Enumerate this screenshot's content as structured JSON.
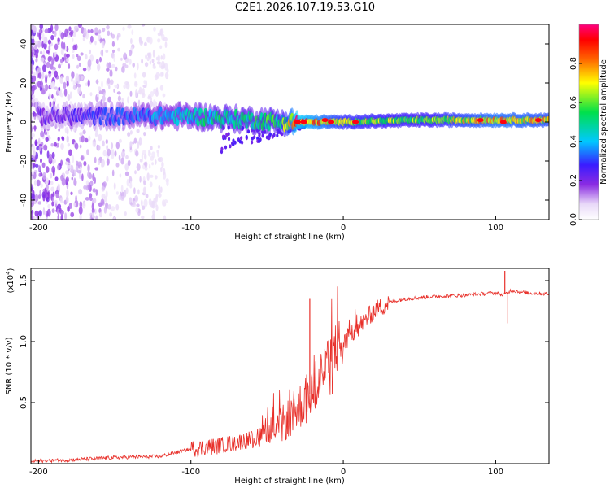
{
  "title": "C2E1.2026.107.19.53.G10",
  "chart_data": [
    {
      "type": "heatmap",
      "title": "C2E1.2026.107.19.53.G10",
      "xlabel": "Height of straight line (km)",
      "ylabel": "Frequency (Hz)",
      "xlim": [
        -205,
        135
      ],
      "ylim": [
        -50,
        50
      ],
      "xticks": [
        -200,
        -100,
        0,
        100
      ],
      "yticks": [
        -40,
        -20,
        0,
        20,
        40
      ],
      "colorbar": {
        "label": "Normalized spectral amplitude",
        "range": [
          0,
          1
        ],
        "ticks": [
          0.0,
          0.2,
          0.4,
          0.6,
          0.8
        ],
        "tick_labels": [
          "0.0",
          "0.2",
          "0.4",
          "0.6",
          "0.8"
        ]
      },
      "ridge": {
        "x": [
          -200,
          -150,
          -100,
          -80,
          -60,
          -40,
          -30,
          0,
          50,
          100,
          135
        ],
        "freq": [
          3,
          3,
          3,
          2,
          1,
          0,
          0,
          0,
          1,
          1,
          1
        ],
        "amplitude": [
          0.2,
          0.3,
          0.45,
          0.5,
          0.5,
          0.55,
          0.9,
          0.65,
          0.6,
          0.75,
          0.7
        ]
      }
    },
    {
      "type": "line",
      "xlabel": "Height of straight line (km)",
      "ylabel": "SNR (10 * v/v)",
      "scale_label": "(x10",
      "scale_exponent": "4",
      "scale_suffix": ")",
      "xlim": [
        -205,
        135
      ],
      "ylim": [
        0,
        1.6
      ],
      "xticks": [
        -200,
        -100,
        0,
        100
      ],
      "yticks": [
        0.5,
        1.0,
        1.5
      ],
      "ytick_labels": [
        "0.5",
        "1.0",
        "1.5"
      ],
      "series": [
        {
          "name": "SNR",
          "color": "#e8302a",
          "x": [
            -205,
            -180,
            -150,
            -120,
            -100,
            -80,
            -60,
            -50,
            -40,
            -30,
            -20,
            -10,
            0,
            10,
            20,
            30,
            40,
            60,
            80,
            90,
            100,
            105,
            110,
            120,
            135
          ],
          "y": [
            0.02,
            0.03,
            0.05,
            0.06,
            0.12,
            0.15,
            0.2,
            0.25,
            0.32,
            0.45,
            0.6,
            0.78,
            0.98,
            1.12,
            1.25,
            1.32,
            1.35,
            1.37,
            1.38,
            1.39,
            1.4,
            1.38,
            1.42,
            1.4,
            1.39
          ]
        }
      ],
      "spikes": [
        {
          "x": -22,
          "y": 1.35
        },
        {
          "x": 106,
          "y": 1.58
        },
        {
          "x": 108,
          "y": 1.15
        }
      ]
    }
  ]
}
